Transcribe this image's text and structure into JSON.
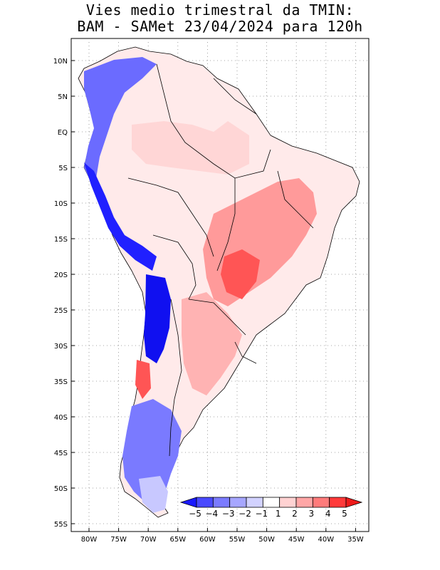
{
  "title": {
    "line1": "Vies medio trimestral da TMIN:",
    "line2": "BAM - SAMet 23/04/2024  para 120h"
  },
  "axes": {
    "lat_labels": [
      "10N",
      "5N",
      "EQ",
      "5S",
      "10S",
      "15S",
      "20S",
      "25S",
      "30S",
      "35S",
      "40S",
      "45S",
      "50S",
      "55S"
    ],
    "lon_labels": [
      "80W",
      "75W",
      "70W",
      "65W",
      "60W",
      "55W",
      "50W",
      "45W",
      "40W",
      "35W"
    ]
  },
  "colorbar": {
    "labels": [
      "-5",
      "-4",
      "-3",
      "-2",
      "-1",
      "1",
      "2",
      "3",
      "4",
      "5"
    ],
    "colors": [
      "#1a1aff",
      "#4a4aff",
      "#7b7bff",
      "#a6a6ff",
      "#d2d2ff",
      "#ffffff",
      "#ffd2d2",
      "#ffa6a6",
      "#ff7b7b",
      "#ff3a3a",
      "#ee1a1a"
    ]
  },
  "colors": {
    "cold_strong": "#1010f0",
    "cold_mid": "#6b6bff",
    "cold_light": "#c8c8ff",
    "warm_light": "#ffd6d6",
    "warm_mid": "#ff9a9a",
    "warm_strong": "#ff5555",
    "grid": "#888888",
    "border": "#000000"
  }
}
